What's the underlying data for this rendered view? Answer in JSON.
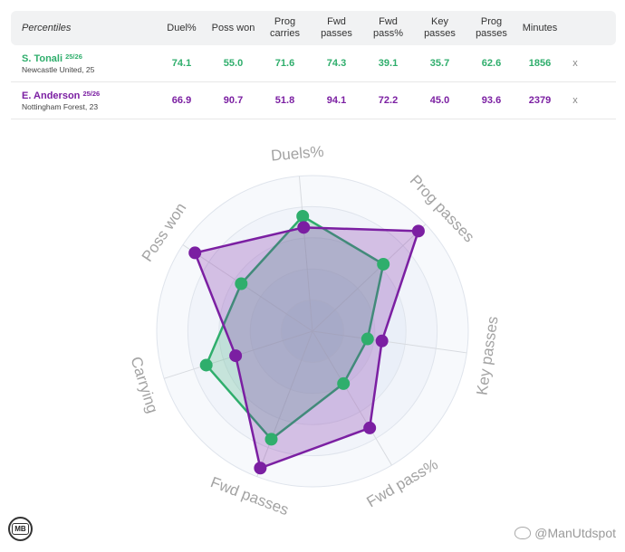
{
  "table": {
    "title": "Percentiles",
    "columns": [
      "Duel%",
      "Poss won",
      "Prog carries",
      "Fwd passes",
      "Fwd pass%",
      "Key passes",
      "Prog passes",
      "Minutes"
    ],
    "columns_split": [
      [
        "Duel%",
        ""
      ],
      [
        "Poss won",
        ""
      ],
      [
        "Prog",
        "carries"
      ],
      [
        "Fwd",
        "passes"
      ],
      [
        "Fwd",
        "pass%"
      ],
      [
        "Key",
        "passes"
      ],
      [
        "Prog",
        "passes"
      ],
      [
        "Minutes",
        ""
      ]
    ],
    "remove_label": "x",
    "players": [
      {
        "name": "S. Tonali",
        "season": "25/26",
        "team": "Newcastle United, 25",
        "color": "#2fae6c",
        "values": [
          "74.1",
          "55.0",
          "71.6",
          "74.3",
          "39.1",
          "35.7",
          "62.6",
          "1856"
        ]
      },
      {
        "name": "E. Anderson",
        "season": "25/26",
        "team": "Nottingham Forest, 23",
        "color": "#7b1fa2",
        "values": [
          "66.9",
          "90.7",
          "51.8",
          "94.1",
          "72.2",
          "45.0",
          "93.6",
          "2379"
        ]
      }
    ]
  },
  "chart_data": {
    "type": "radar",
    "axes": [
      "Key passes",
      "Prog passes",
      "Duels%",
      "Poss won",
      "Carrying",
      "Fwd passes",
      "Fwd pass%"
    ],
    "range": [
      0,
      100
    ],
    "series": [
      {
        "name": "S. Tonali",
        "color": "#2fae6c",
        "values": [
          35.7,
          62.6,
          74.1,
          55.0,
          71.6,
          74.3,
          39.1
        ]
      },
      {
        "name": "E. Anderson",
        "color": "#7b1fa2",
        "values": [
          45.0,
          93.6,
          66.9,
          90.7,
          51.8,
          94.1,
          72.2
        ]
      }
    ]
  },
  "watermark": "@ManUtdspot",
  "logo_text": "MB"
}
